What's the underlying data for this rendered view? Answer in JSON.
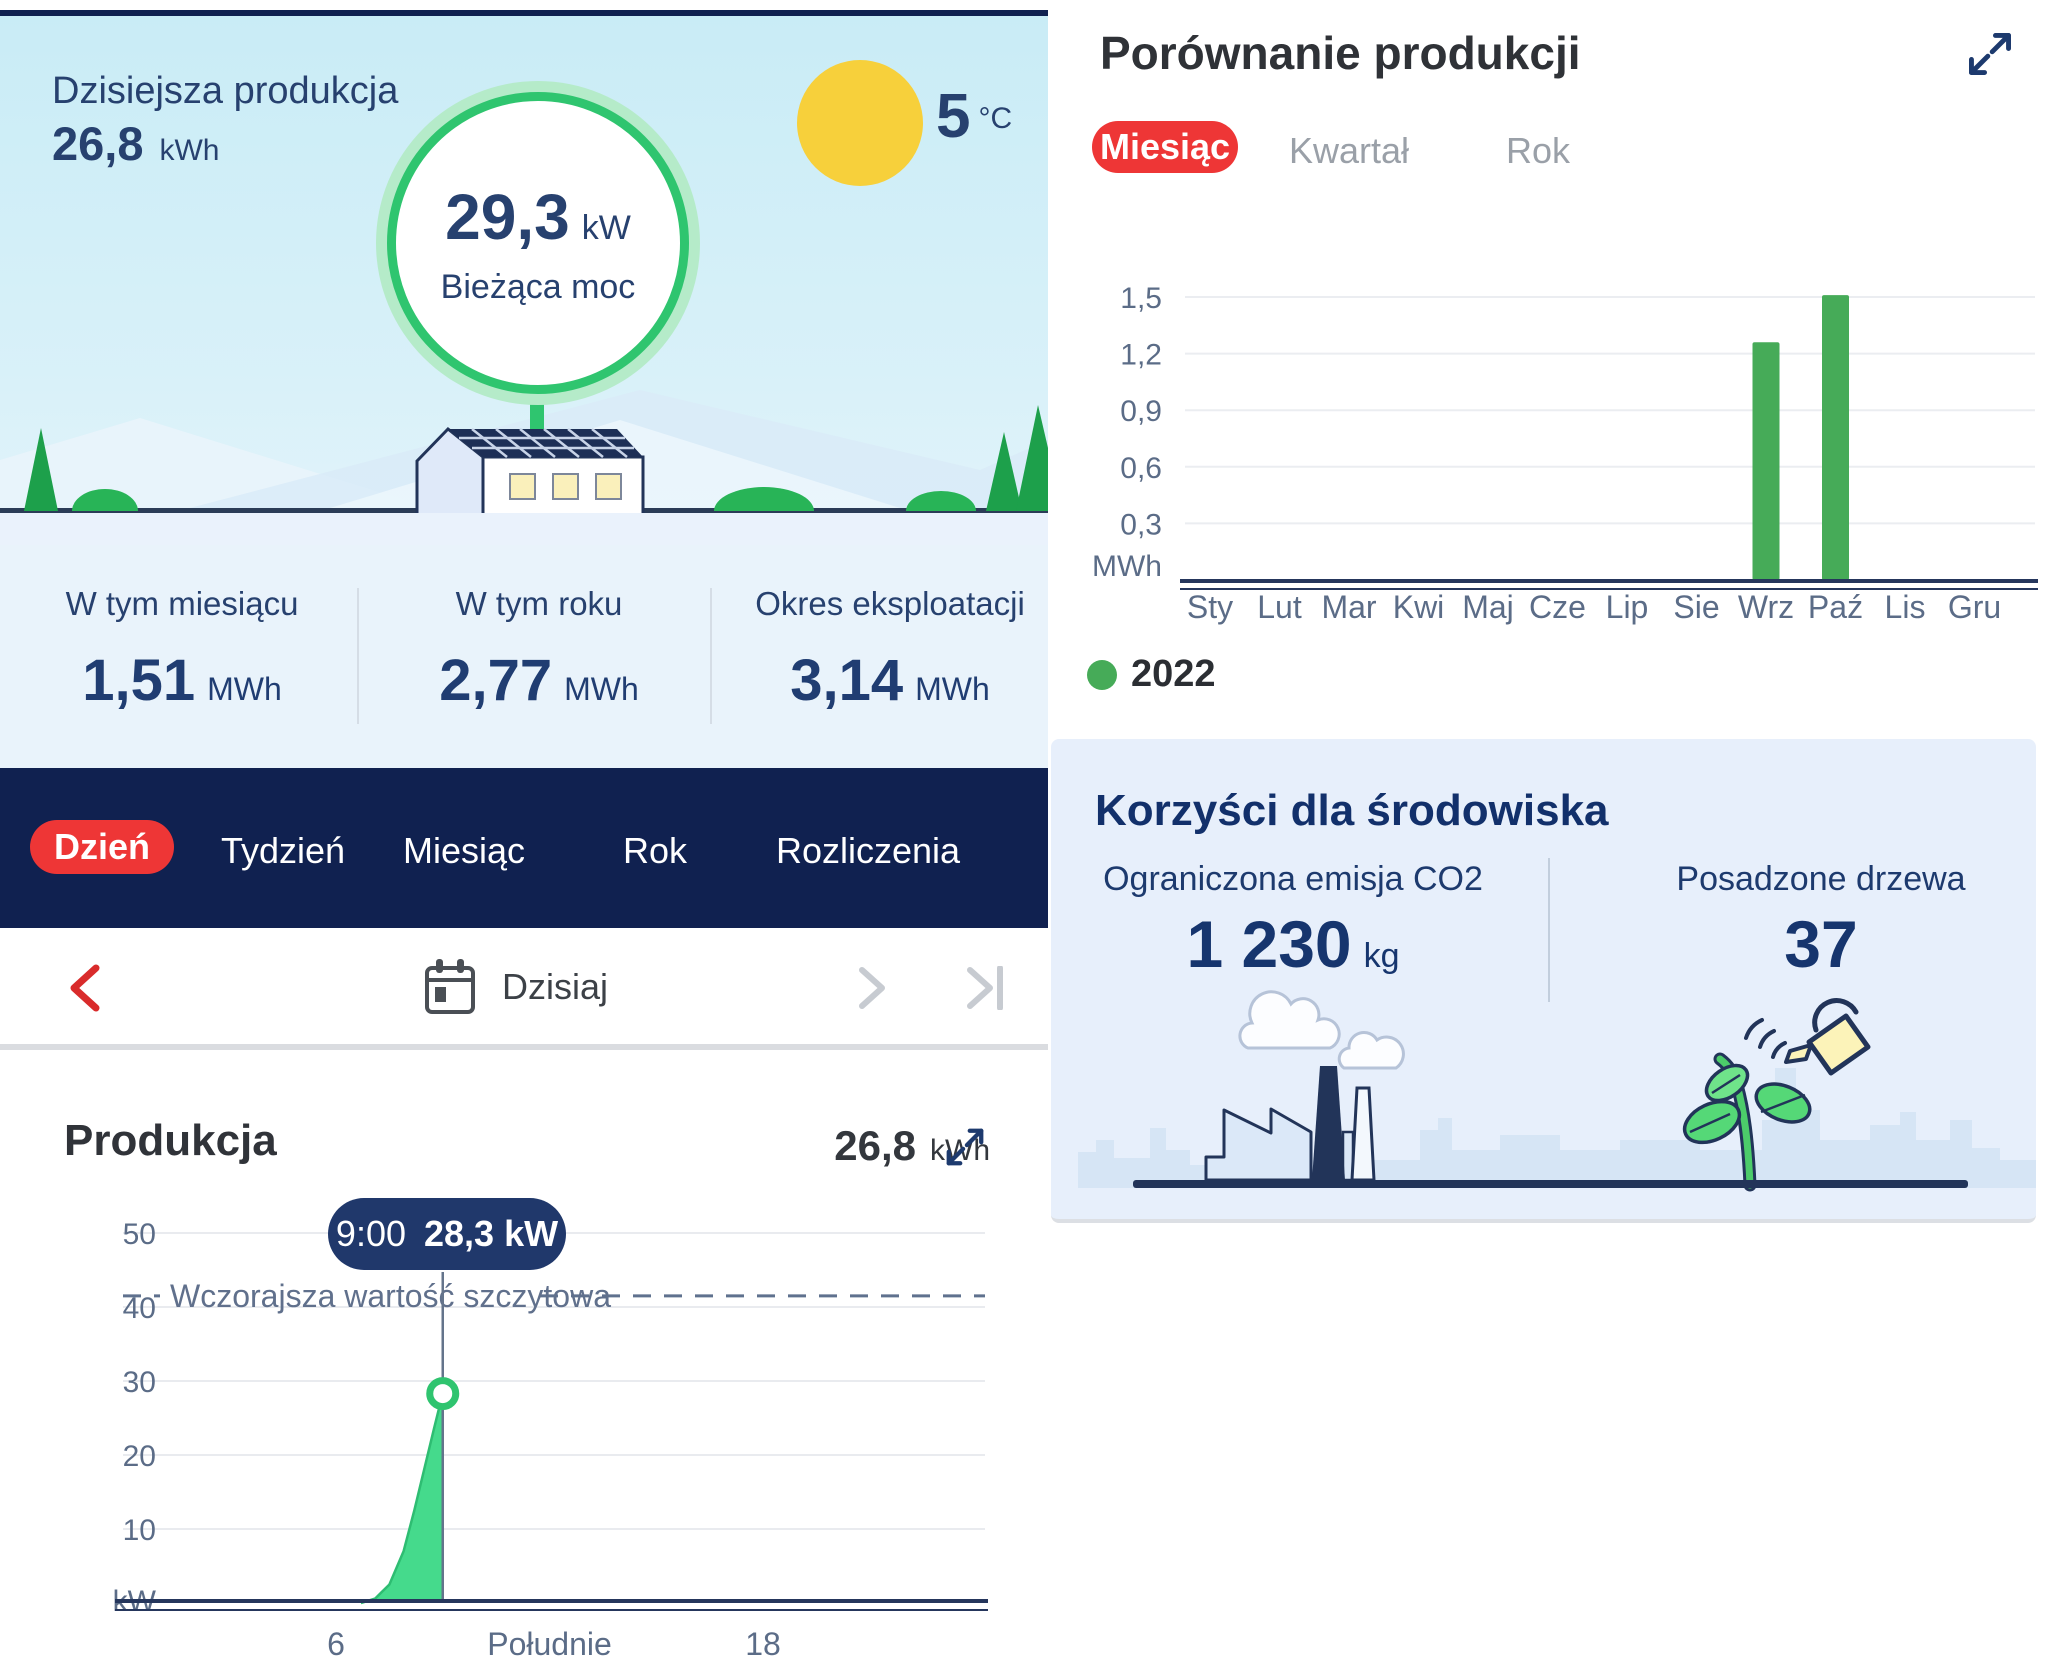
{
  "colors": {
    "accent_red": "#ee3636",
    "navy_dark": "#102150",
    "text_navy": "#27416f",
    "green_ring": "#2fc56f",
    "green_ring_glow": "#b5ebc9",
    "green_area": "#45da8c",
    "green_bar": "#46ab58",
    "sun_yellow": "#f7d03b",
    "sky_top": "#c9ecf6",
    "panel_blue": "#e9f3fb",
    "card_blue": "#e7effb",
    "gray_label": "#5b6c87"
  },
  "left": {
    "top": {
      "today_label": "Dzisiejsza produkcja",
      "today_value": "26,8",
      "today_unit": "kWh",
      "gauge_value": "29,3",
      "gauge_unit": "kW",
      "gauge_label": "Bieżąca moc",
      "temp_value": "5",
      "temp_unit": "°C"
    },
    "stats": [
      {
        "label": "W tym miesiącu",
        "value": "1,51",
        "unit": "MWh"
      },
      {
        "label": "W tym roku",
        "value": "2,77",
        "unit": "MWh"
      },
      {
        "label": "Okres eksploatacji",
        "value": "3,14",
        "unit": "MWh"
      }
    ],
    "nav": {
      "items": [
        {
          "label": "Dzień",
          "active": true
        },
        {
          "label": "Tydzień",
          "active": false
        },
        {
          "label": "Miesiąc",
          "active": false
        },
        {
          "label": "Rok",
          "active": false
        },
        {
          "label": "Rozliczenia",
          "active": false
        }
      ]
    },
    "date_nav": {
      "label": "Dzisiaj"
    },
    "production": {
      "title": "Produkcja",
      "total_value": "26,8",
      "total_unit": "kWh",
      "tooltip": {
        "time": "9:00",
        "value": "28,3 kW"
      }
    }
  },
  "right": {
    "comparison": {
      "title": "Porównanie produkcji",
      "tabs": [
        {
          "label": "Miesiąc",
          "active": true
        },
        {
          "label": "Kwartał",
          "active": false
        },
        {
          "label": "Rok",
          "active": false
        }
      ],
      "legend": [
        {
          "label": "2022",
          "color": "#3fa75a"
        }
      ]
    },
    "environment": {
      "title": "Korzyści dla środowiska",
      "stats": [
        {
          "label": "Ograniczona emisja CO2",
          "value": "1 230",
          "unit": "kg"
        },
        {
          "label": "Posadzone drzewa",
          "value": "37",
          "unit": ""
        }
      ]
    }
  },
  "chart_data": [
    {
      "type": "area",
      "title": "Produkcja (dzień)",
      "x": [
        6.7,
        7.1,
        7.5,
        7.9,
        8.2,
        8.5,
        8.75,
        9
      ],
      "values": [
        0,
        0.6,
        2.5,
        7,
        12.5,
        18.5,
        23.5,
        28.3
      ],
      "x_ticks": [
        "6",
        "Południe",
        "18"
      ],
      "x_tick_hours": [
        6,
        12,
        18
      ],
      "y_ticks": [
        "50",
        "40",
        "30",
        "20",
        "10"
      ],
      "y_tick_values": [
        50,
        40,
        30,
        20,
        10
      ],
      "y_axis_unit": "kW",
      "ylim": [
        0,
        54
      ],
      "xlim_hours": [
        0,
        24
      ],
      "grid": true,
      "reference_line": {
        "label": "Wczorajsza wartość szczytowa",
        "value": 41.5
      },
      "marker": {
        "time": "9:00",
        "value": 28.3
      },
      "area_color": "#45da8c",
      "edge_color": "#2ebd72"
    },
    {
      "type": "bar",
      "title": "Porównanie produkcji (miesiąc)",
      "categories": [
        "Sty",
        "Lut",
        "Mar",
        "Kwi",
        "Maj",
        "Cze",
        "Lip",
        "Sie",
        "Wrz",
        "Paź",
        "Lis",
        "Gru"
      ],
      "series": [
        {
          "name": "2022",
          "color": "#46ab58",
          "values": [
            0,
            0,
            0,
            0,
            0,
            0,
            0,
            0,
            1.26,
            1.51,
            0,
            0
          ]
        }
      ],
      "y_ticks": [
        "1,5",
        "1,2",
        "0,9",
        "0,6",
        "0,3"
      ],
      "y_tick_values": [
        1.5,
        1.2,
        0.9,
        0.6,
        0.3
      ],
      "y_axis_unit": "MWh",
      "ylim": [
        0,
        1.6
      ],
      "grid": true,
      "legend_position": "bottom-left"
    }
  ]
}
